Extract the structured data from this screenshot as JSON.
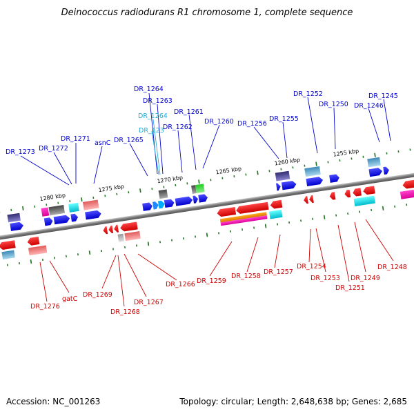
{
  "title": "Deinococcus radiodurans R1 chromosome 1, complete sequence",
  "footer": {
    "accession": "Accession: NC_001263",
    "summary": "Topology: circular; Length: 2,648,638 bp; Genes: 2,685"
  },
  "scale_labels": [
    "1280 kbp",
    "1275 kbp",
    "1270 kbp",
    "1265 kbp",
    "1260 kbp",
    "1255 kbp"
  ],
  "genes_top": [
    "DR_1273",
    "DR_1272",
    "DR_1271",
    "asnC",
    "DR_1265",
    "DR_1264",
    "DR_1263",
    "DR_1264",
    "DR_123",
    "DR_1262",
    "DR_1261",
    "DR_1260",
    "DR_1256",
    "DR_1255",
    "DR_1252",
    "DR_1250",
    "DR_1246",
    "DR_1245"
  ],
  "genes_bottom": [
    "DR_1276",
    "gatC",
    "DR_1269",
    "DR_1268",
    "DR_1267",
    "DR_1266",
    "DR_1259",
    "DR_1258",
    "DR_1257",
    "DR_1254",
    "DR_1253",
    "DR_1251",
    "DR_1249",
    "DR_1248"
  ],
  "colors": {
    "forward": "#0000ee",
    "reverse": "#ee0000",
    "backbone": "#777777",
    "tick": "#2a7a2a",
    "label_top": "#0000cc",
    "label_cyan": "#22aadd",
    "label_bottom": "#cc0000"
  }
}
